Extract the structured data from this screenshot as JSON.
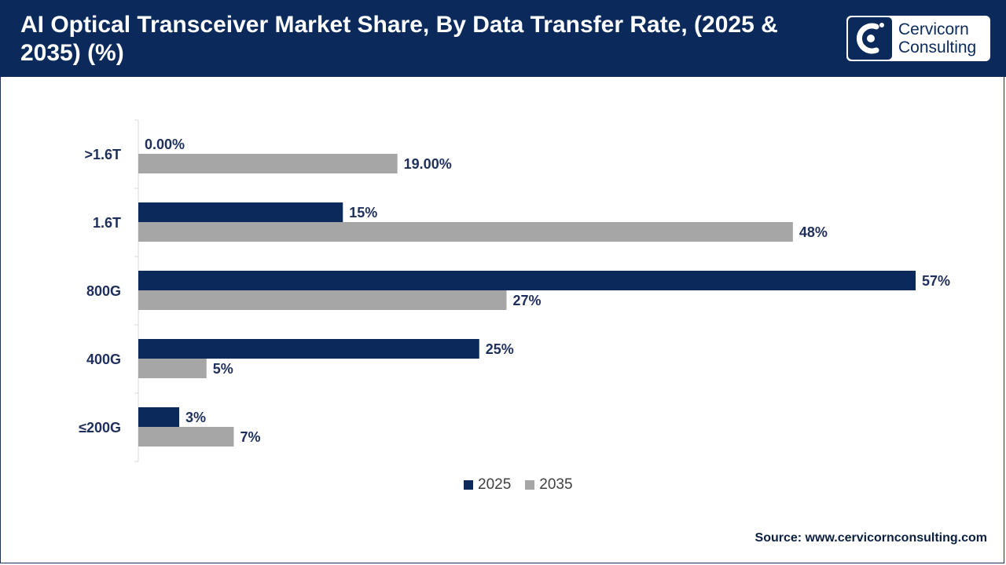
{
  "header": {
    "title": "AI Optical Transceiver Market Share, By Data Transfer Rate, (2025 & 2035) (%)",
    "logo_line1": "Cervicorn",
    "logo_line2": "Consulting"
  },
  "colors": {
    "header_bg": "#0b2a5b",
    "series_2025": "#0b2a5b",
    "series_2035": "#a6a6a6",
    "text": "#1f2f5c"
  },
  "source": "Source: www.cervicornconsulting.com",
  "chart_data": {
    "type": "bar",
    "orientation": "horizontal",
    "categories": [
      ">1.6T",
      "1.6T",
      "800G",
      "400G",
      "≤200G"
    ],
    "series": [
      {
        "name": "2025",
        "values": [
          0,
          15,
          57,
          25,
          3
        ],
        "labels": [
          "0.00%",
          "15%",
          "57%",
          "25%",
          "3%"
        ],
        "color": "#0b2a5b"
      },
      {
        "name": "2035",
        "values": [
          19,
          48,
          27,
          5,
          7
        ],
        "labels": [
          "19.00%",
          "48%",
          "27%",
          "5%",
          "7%"
        ],
        "color": "#a6a6a6"
      }
    ],
    "title": "AI Optical Transceiver Market Share, By Data Transfer Rate, (2025 & 2035) (%)",
    "xlim": [
      0,
      57
    ],
    "grid": false,
    "legend_position": "bottom"
  }
}
